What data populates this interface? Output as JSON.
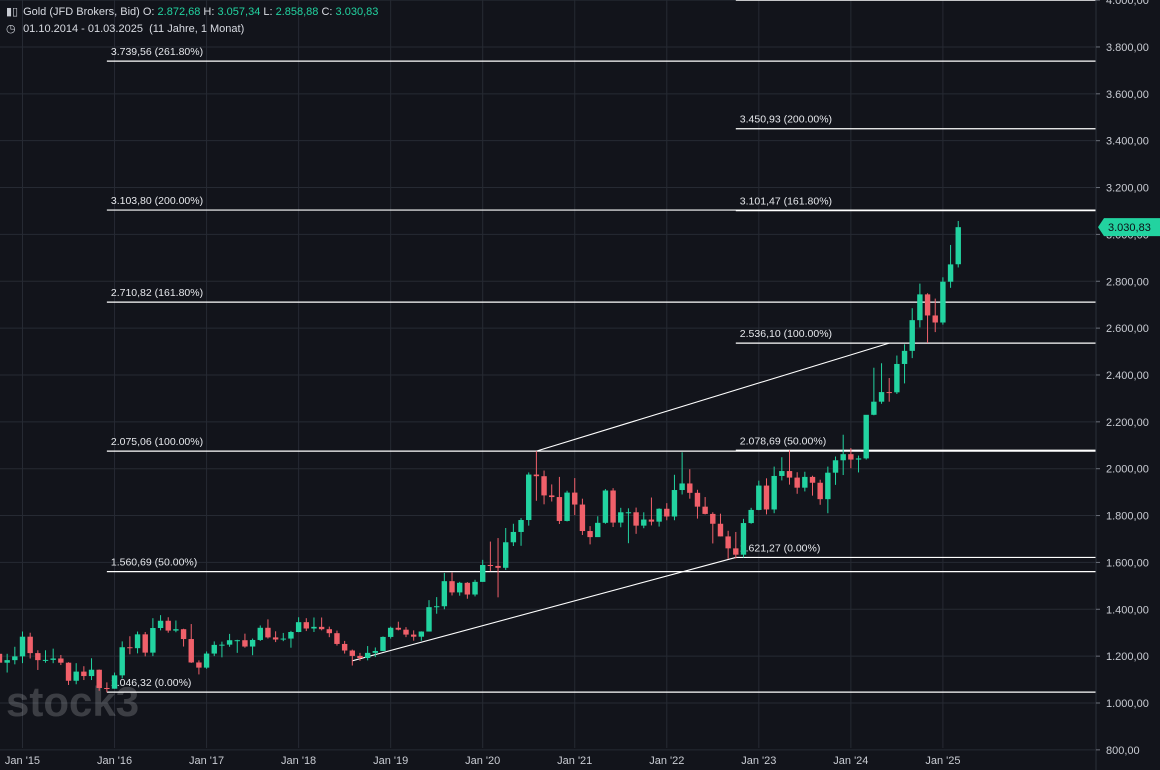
{
  "header": {
    "symbol_icon": "candles-icon",
    "instrument": "Gold (JFD Brokers, Bid)",
    "ohlc": [
      {
        "label": "O:",
        "value": "2.872,68"
      },
      {
        "label": "H:",
        "value": "3.057,34"
      },
      {
        "label": "L:",
        "value": "2.858,88"
      },
      {
        "label": "C:",
        "value": "3.030,83"
      }
    ],
    "clock_icon": "clock-icon",
    "range": "01.10.2014 - 01.03.2025",
    "duration": "(11 Jahre, 1 Monat)"
  },
  "watermark": "stock3",
  "colors": {
    "background": "#12141b",
    "up": "#22d3a0",
    "down": "#f0606a",
    "grid": "#262a33",
    "line": "#ffffff",
    "price_tag": "#22d3a0"
  },
  "chart_data": {
    "type": "candlestick",
    "interval": "monthly",
    "ylim": [
      800,
      4000
    ],
    "y_ticks": [
      {
        "value": 800,
        "label": "800,00"
      },
      {
        "value": 1000,
        "label": "1.000,00"
      },
      {
        "value": 1200,
        "label": "1.200,00"
      },
      {
        "value": 1400,
        "label": "1.400,00"
      },
      {
        "value": 1600,
        "label": "1.600,00"
      },
      {
        "value": 1800,
        "label": "1.800,00"
      },
      {
        "value": 2000,
        "label": "2.000,00"
      },
      {
        "value": 2200,
        "label": "2.200,00"
      },
      {
        "value": 2400,
        "label": "2.400,00"
      },
      {
        "value": 2600,
        "label": "2.600,00"
      },
      {
        "value": 2800,
        "label": "2.800,00"
      },
      {
        "value": 3000,
        "label": "3.000,00"
      },
      {
        "value": 3200,
        "label": "3.200,00"
      },
      {
        "value": 3400,
        "label": "3.400,00"
      },
      {
        "value": 3600,
        "label": "3.600,00"
      },
      {
        "value": 3800,
        "label": "3.800,00"
      },
      {
        "value": 4000,
        "label": "4.000,00"
      }
    ],
    "x_ticks": [
      {
        "date": "2015-01",
        "label": "Jan '15"
      },
      {
        "date": "2016-01",
        "label": "Jan '16"
      },
      {
        "date": "2017-01",
        "label": "Jan '17"
      },
      {
        "date": "2018-01",
        "label": "Jan '18"
      },
      {
        "date": "2019-01",
        "label": "Jan '19"
      },
      {
        "date": "2020-01",
        "label": "Jan '20"
      },
      {
        "date": "2021-01",
        "label": "Jan '21"
      },
      {
        "date": "2022-01",
        "label": "Jan '22"
      },
      {
        "date": "2023-01",
        "label": "Jan '23"
      },
      {
        "date": "2024-01",
        "label": "Jan '24"
      },
      {
        "date": "2025-01",
        "label": "Jan '25"
      }
    ],
    "last_price": {
      "value": 3030.83,
      "label": "3.030,83"
    },
    "candles": [
      {
        "date": "2014-10",
        "o": 1210,
        "h": 1255,
        "l": 1160,
        "c": 1172
      },
      {
        "date": "2014-11",
        "o": 1172,
        "h": 1210,
        "l": 1130,
        "c": 1183
      },
      {
        "date": "2014-12",
        "o": 1183,
        "h": 1240,
        "l": 1165,
        "c": 1199
      },
      {
        "date": "2015-01",
        "o": 1199,
        "h": 1305,
        "l": 1170,
        "c": 1283
      },
      {
        "date": "2015-02",
        "o": 1283,
        "h": 1300,
        "l": 1190,
        "c": 1213
      },
      {
        "date": "2015-03",
        "o": 1213,
        "h": 1225,
        "l": 1141,
        "c": 1183
      },
      {
        "date": "2015-04",
        "o": 1183,
        "h": 1225,
        "l": 1172,
        "c": 1184
      },
      {
        "date": "2015-05",
        "o": 1184,
        "h": 1232,
        "l": 1170,
        "c": 1190
      },
      {
        "date": "2015-06",
        "o": 1190,
        "h": 1205,
        "l": 1162,
        "c": 1172
      },
      {
        "date": "2015-07",
        "o": 1172,
        "h": 1174,
        "l": 1077,
        "c": 1095
      },
      {
        "date": "2015-08",
        "o": 1095,
        "h": 1170,
        "l": 1080,
        "c": 1134
      },
      {
        "date": "2015-09",
        "o": 1134,
        "h": 1157,
        "l": 1098,
        "c": 1115
      },
      {
        "date": "2015-10",
        "o": 1115,
        "h": 1191,
        "l": 1098,
        "c": 1142
      },
      {
        "date": "2015-11",
        "o": 1142,
        "h": 1143,
        "l": 1052,
        "c": 1064
      },
      {
        "date": "2015-12",
        "o": 1064,
        "h": 1088,
        "l": 1046,
        "c": 1061
      },
      {
        "date": "2016-01",
        "o": 1061,
        "h": 1130,
        "l": 1061,
        "c": 1118
      },
      {
        "date": "2016-02",
        "o": 1118,
        "h": 1263,
        "l": 1105,
        "c": 1238
      },
      {
        "date": "2016-03",
        "o": 1238,
        "h": 1285,
        "l": 1208,
        "c": 1234
      },
      {
        "date": "2016-04",
        "o": 1234,
        "h": 1305,
        "l": 1212,
        "c": 1293
      },
      {
        "date": "2016-05",
        "o": 1293,
        "h": 1303,
        "l": 1199,
        "c": 1215
      },
      {
        "date": "2016-06",
        "o": 1215,
        "h": 1362,
        "l": 1200,
        "c": 1320
      },
      {
        "date": "2016-07",
        "o": 1320,
        "h": 1375,
        "l": 1310,
        "c": 1351
      },
      {
        "date": "2016-08",
        "o": 1351,
        "h": 1366,
        "l": 1300,
        "c": 1309
      },
      {
        "date": "2016-09",
        "o": 1309,
        "h": 1352,
        "l": 1302,
        "c": 1315
      },
      {
        "date": "2016-10",
        "o": 1315,
        "h": 1317,
        "l": 1241,
        "c": 1273
      },
      {
        "date": "2016-11",
        "o": 1273,
        "h": 1337,
        "l": 1171,
        "c": 1173
      },
      {
        "date": "2016-12",
        "o": 1173,
        "h": 1182,
        "l": 1122,
        "c": 1151
      },
      {
        "date": "2017-01",
        "o": 1151,
        "h": 1220,
        "l": 1146,
        "c": 1211
      },
      {
        "date": "2017-02",
        "o": 1211,
        "h": 1263,
        "l": 1200,
        "c": 1248
      },
      {
        "date": "2017-03",
        "o": 1248,
        "h": 1262,
        "l": 1195,
        "c": 1249
      },
      {
        "date": "2017-04",
        "o": 1249,
        "h": 1295,
        "l": 1240,
        "c": 1268
      },
      {
        "date": "2017-05",
        "o": 1268,
        "h": 1270,
        "l": 1214,
        "c": 1268
      },
      {
        "date": "2017-06",
        "o": 1268,
        "h": 1296,
        "l": 1236,
        "c": 1241
      },
      {
        "date": "2017-07",
        "o": 1241,
        "h": 1275,
        "l": 1204,
        "c": 1269
      },
      {
        "date": "2017-08",
        "o": 1269,
        "h": 1331,
        "l": 1265,
        "c": 1321
      },
      {
        "date": "2017-09",
        "o": 1321,
        "h": 1357,
        "l": 1275,
        "c": 1280
      },
      {
        "date": "2017-10",
        "o": 1280,
        "h": 1306,
        "l": 1260,
        "c": 1271
      },
      {
        "date": "2017-11",
        "o": 1271,
        "h": 1299,
        "l": 1264,
        "c": 1275
      },
      {
        "date": "2017-12",
        "o": 1275,
        "h": 1308,
        "l": 1236,
        "c": 1303
      },
      {
        "date": "2018-01",
        "o": 1303,
        "h": 1366,
        "l": 1302,
        "c": 1345
      },
      {
        "date": "2018-02",
        "o": 1345,
        "h": 1362,
        "l": 1307,
        "c": 1318
      },
      {
        "date": "2018-03",
        "o": 1318,
        "h": 1365,
        "l": 1303,
        "c": 1325
      },
      {
        "date": "2018-04",
        "o": 1325,
        "h": 1365,
        "l": 1310,
        "c": 1315
      },
      {
        "date": "2018-05",
        "o": 1315,
        "h": 1326,
        "l": 1281,
        "c": 1298
      },
      {
        "date": "2018-06",
        "o": 1298,
        "h": 1309,
        "l": 1245,
        "c": 1252
      },
      {
        "date": "2018-07",
        "o": 1252,
        "h": 1265,
        "l": 1211,
        "c": 1224
      },
      {
        "date": "2018-08",
        "o": 1224,
        "h": 1228,
        "l": 1160,
        "c": 1201
      },
      {
        "date": "2018-09",
        "o": 1201,
        "h": 1214,
        "l": 1180,
        "c": 1192
      },
      {
        "date": "2018-10",
        "o": 1192,
        "h": 1243,
        "l": 1182,
        "c": 1214
      },
      {
        "date": "2018-11",
        "o": 1214,
        "h": 1237,
        "l": 1196,
        "c": 1222
      },
      {
        "date": "2018-12",
        "o": 1222,
        "h": 1284,
        "l": 1221,
        "c": 1282
      },
      {
        "date": "2019-01",
        "o": 1282,
        "h": 1326,
        "l": 1275,
        "c": 1321
      },
      {
        "date": "2019-02",
        "o": 1321,
        "h": 1347,
        "l": 1310,
        "c": 1313
      },
      {
        "date": "2019-03",
        "o": 1313,
        "h": 1324,
        "l": 1281,
        "c": 1292
      },
      {
        "date": "2019-04",
        "o": 1292,
        "h": 1310,
        "l": 1266,
        "c": 1283
      },
      {
        "date": "2019-05",
        "o": 1283,
        "h": 1306,
        "l": 1266,
        "c": 1305
      },
      {
        "date": "2019-06",
        "o": 1305,
        "h": 1439,
        "l": 1305,
        "c": 1409
      },
      {
        "date": "2019-07",
        "o": 1409,
        "h": 1452,
        "l": 1381,
        "c": 1413
      },
      {
        "date": "2019-08",
        "o": 1413,
        "h": 1555,
        "l": 1400,
        "c": 1520
      },
      {
        "date": "2019-09",
        "o": 1520,
        "h": 1557,
        "l": 1459,
        "c": 1472
      },
      {
        "date": "2019-10",
        "o": 1472,
        "h": 1517,
        "l": 1458,
        "c": 1513
      },
      {
        "date": "2019-11",
        "o": 1513,
        "h": 1516,
        "l": 1445,
        "c": 1463
      },
      {
        "date": "2019-12",
        "o": 1463,
        "h": 1526,
        "l": 1455,
        "c": 1517
      },
      {
        "date": "2020-01",
        "o": 1517,
        "h": 1611,
        "l": 1517,
        "c": 1589
      },
      {
        "date": "2020-02",
        "o": 1589,
        "h": 1689,
        "l": 1563,
        "c": 1585
      },
      {
        "date": "2020-03",
        "o": 1585,
        "h": 1704,
        "l": 1451,
        "c": 1577
      },
      {
        "date": "2020-04",
        "o": 1577,
        "h": 1747,
        "l": 1568,
        "c": 1686
      },
      {
        "date": "2020-05",
        "o": 1686,
        "h": 1765,
        "l": 1670,
        "c": 1730
      },
      {
        "date": "2020-06",
        "o": 1730,
        "h": 1789,
        "l": 1671,
        "c": 1781
      },
      {
        "date": "2020-07",
        "o": 1781,
        "h": 1984,
        "l": 1757,
        "c": 1975
      },
      {
        "date": "2020-08",
        "o": 1975,
        "h": 2075,
        "l": 1863,
        "c": 1968
      },
      {
        "date": "2020-09",
        "o": 1968,
        "h": 1992,
        "l": 1848,
        "c": 1886
      },
      {
        "date": "2020-10",
        "o": 1886,
        "h": 1933,
        "l": 1860,
        "c": 1879
      },
      {
        "date": "2020-11",
        "o": 1879,
        "h": 1965,
        "l": 1764,
        "c": 1777
      },
      {
        "date": "2020-12",
        "o": 1777,
        "h": 1906,
        "l": 1775,
        "c": 1898
      },
      {
        "date": "2021-01",
        "o": 1898,
        "h": 1960,
        "l": 1802,
        "c": 1847
      },
      {
        "date": "2021-02",
        "o": 1847,
        "h": 1872,
        "l": 1717,
        "c": 1734
      },
      {
        "date": "2021-03",
        "o": 1734,
        "h": 1755,
        "l": 1677,
        "c": 1708
      },
      {
        "date": "2021-04",
        "o": 1708,
        "h": 1797,
        "l": 1721,
        "c": 1769
      },
      {
        "date": "2021-05",
        "o": 1769,
        "h": 1913,
        "l": 1765,
        "c": 1907
      },
      {
        "date": "2021-06",
        "o": 1907,
        "h": 1917,
        "l": 1751,
        "c": 1770
      },
      {
        "date": "2021-07",
        "o": 1770,
        "h": 1833,
        "l": 1750,
        "c": 1814
      },
      {
        "date": "2021-08",
        "o": 1814,
        "h": 1831,
        "l": 1682,
        "c": 1814
      },
      {
        "date": "2021-09",
        "o": 1814,
        "h": 1834,
        "l": 1722,
        "c": 1757
      },
      {
        "date": "2021-10",
        "o": 1757,
        "h": 1814,
        "l": 1746,
        "c": 1783
      },
      {
        "date": "2021-11",
        "o": 1783,
        "h": 1877,
        "l": 1758,
        "c": 1774
      },
      {
        "date": "2021-12",
        "o": 1774,
        "h": 1831,
        "l": 1753,
        "c": 1829
      },
      {
        "date": "2022-01",
        "o": 1829,
        "h": 1853,
        "l": 1780,
        "c": 1796
      },
      {
        "date": "2022-02",
        "o": 1796,
        "h": 1974,
        "l": 1780,
        "c": 1909
      },
      {
        "date": "2022-03",
        "o": 1909,
        "h": 2070,
        "l": 1890,
        "c": 1937
      },
      {
        "date": "2022-04",
        "o": 1937,
        "h": 1998,
        "l": 1872,
        "c": 1897
      },
      {
        "date": "2022-05",
        "o": 1897,
        "h": 1910,
        "l": 1787,
        "c": 1838
      },
      {
        "date": "2022-06",
        "o": 1838,
        "h": 1879,
        "l": 1805,
        "c": 1807
      },
      {
        "date": "2022-07",
        "o": 1807,
        "h": 1814,
        "l": 1681,
        "c": 1765
      },
      {
        "date": "2022-08",
        "o": 1765,
        "h": 1808,
        "l": 1711,
        "c": 1711
      },
      {
        "date": "2022-09",
        "o": 1711,
        "h": 1735,
        "l": 1615,
        "c": 1660
      },
      {
        "date": "2022-10",
        "o": 1660,
        "h": 1730,
        "l": 1617,
        "c": 1633
      },
      {
        "date": "2022-11",
        "o": 1633,
        "h": 1786,
        "l": 1621,
        "c": 1768
      },
      {
        "date": "2022-12",
        "o": 1768,
        "h": 1833,
        "l": 1765,
        "c": 1824
      },
      {
        "date": "2023-01",
        "o": 1824,
        "h": 1949,
        "l": 1823,
        "c": 1928
      },
      {
        "date": "2023-02",
        "o": 1928,
        "h": 1959,
        "l": 1805,
        "c": 1826
      },
      {
        "date": "2023-03",
        "o": 1826,
        "h": 2009,
        "l": 1810,
        "c": 1969
      },
      {
        "date": "2023-04",
        "o": 1969,
        "h": 2049,
        "l": 1950,
        "c": 1990
      },
      {
        "date": "2023-05",
        "o": 1990,
        "h": 2079,
        "l": 1932,
        "c": 1962
      },
      {
        "date": "2023-06",
        "o": 1962,
        "h": 1985,
        "l": 1893,
        "c": 1919
      },
      {
        "date": "2023-07",
        "o": 1919,
        "h": 1987,
        "l": 1903,
        "c": 1965
      },
      {
        "date": "2023-08",
        "o": 1965,
        "h": 1970,
        "l": 1885,
        "c": 1940
      },
      {
        "date": "2023-09",
        "o": 1940,
        "h": 1953,
        "l": 1846,
        "c": 1870
      },
      {
        "date": "2023-10",
        "o": 1870,
        "h": 2009,
        "l": 1810,
        "c": 1983
      },
      {
        "date": "2023-11",
        "o": 1983,
        "h": 2052,
        "l": 1931,
        "c": 2036
      },
      {
        "date": "2023-12",
        "o": 2036,
        "h": 2145,
        "l": 1973,
        "c": 2062
      },
      {
        "date": "2024-01",
        "o": 2062,
        "h": 2088,
        "l": 2002,
        "c": 2039
      },
      {
        "date": "2024-02",
        "o": 2039,
        "h": 2056,
        "l": 1984,
        "c": 2044
      },
      {
        "date": "2024-03",
        "o": 2044,
        "h": 2222,
        "l": 2039,
        "c": 2230
      },
      {
        "date": "2024-04",
        "o": 2230,
        "h": 2431,
        "l": 2228,
        "c": 2286
      },
      {
        "date": "2024-05",
        "o": 2286,
        "h": 2450,
        "l": 2277,
        "c": 2327
      },
      {
        "date": "2024-06",
        "o": 2327,
        "h": 2387,
        "l": 2286,
        "c": 2326
      },
      {
        "date": "2024-07",
        "o": 2326,
        "h": 2483,
        "l": 2319,
        "c": 2447
      },
      {
        "date": "2024-08",
        "o": 2447,
        "h": 2531,
        "l": 2364,
        "c": 2503
      },
      {
        "date": "2024-09",
        "o": 2503,
        "h": 2685,
        "l": 2472,
        "c": 2634
      },
      {
        "date": "2024-10",
        "o": 2634,
        "h": 2790,
        "l": 2603,
        "c": 2744
      },
      {
        "date": "2024-11",
        "o": 2744,
        "h": 2749,
        "l": 2537,
        "c": 2654
      },
      {
        "date": "2024-12",
        "o": 2654,
        "h": 2726,
        "l": 2583,
        "c": 2624
      },
      {
        "date": "2025-01",
        "o": 2624,
        "h": 2817,
        "l": 2615,
        "c": 2798
      },
      {
        "date": "2025-02",
        "o": 2798,
        "h": 2955,
        "l": 2772,
        "c": 2872
      },
      {
        "date": "2025-03",
        "o": 2872.68,
        "h": 3057.34,
        "l": 2858.88,
        "c": 3030.83
      }
    ],
    "fib_levels": [
      {
        "value": 1046.32,
        "label": "1.046,32 (0.00%)",
        "from": "2015-12",
        "to": "right"
      },
      {
        "value": 1560.69,
        "label": "1.560,69 (50.00%)",
        "from": "2015-12",
        "to": "right"
      },
      {
        "value": 2075.06,
        "label": "2.075,06 (100.00%)",
        "from": "2015-12",
        "to": "right"
      },
      {
        "value": 2710.82,
        "label": "2.710,82 (161.80%)",
        "from": "2015-12",
        "to": "right"
      },
      {
        "value": 3103.8,
        "label": "3.103,80 (200.00%)",
        "from": "2015-12",
        "to": "right"
      },
      {
        "value": 3739.56,
        "label": "3.739,56 (261.80%)",
        "from": "2015-12",
        "to": "right"
      },
      {
        "value": 1621.27,
        "label": "1.621,27 (0.00%)",
        "from": "2022-10",
        "to": "right"
      },
      {
        "value": 2078.69,
        "label": "2.078,69 (50.00%)",
        "from": "2022-10",
        "to": "right"
      },
      {
        "value": 2536.1,
        "label": "2.536,10 (100.00%)",
        "from": "2022-10",
        "to": "right"
      },
      {
        "value": 3101.47,
        "label": "3.101,47 (161.80%)",
        "from": "2022-10",
        "to": "right"
      },
      {
        "value": 3450.93,
        "label": "3.450,93 (200.00%)",
        "from": "2022-10",
        "to": "right"
      },
      {
        "value": 4000,
        "label": "",
        "from": "2022-10",
        "to": "right"
      }
    ],
    "trend_lines": [
      {
        "from": {
          "date": "2018-08",
          "value": 1180
        },
        "to": {
          "date": "2022-10",
          "value": 1621.27
        }
      },
      {
        "from": {
          "date": "2020-08",
          "value": 2075.06
        },
        "to": {
          "date": "2024-06",
          "value": 2536.1
        }
      }
    ]
  }
}
